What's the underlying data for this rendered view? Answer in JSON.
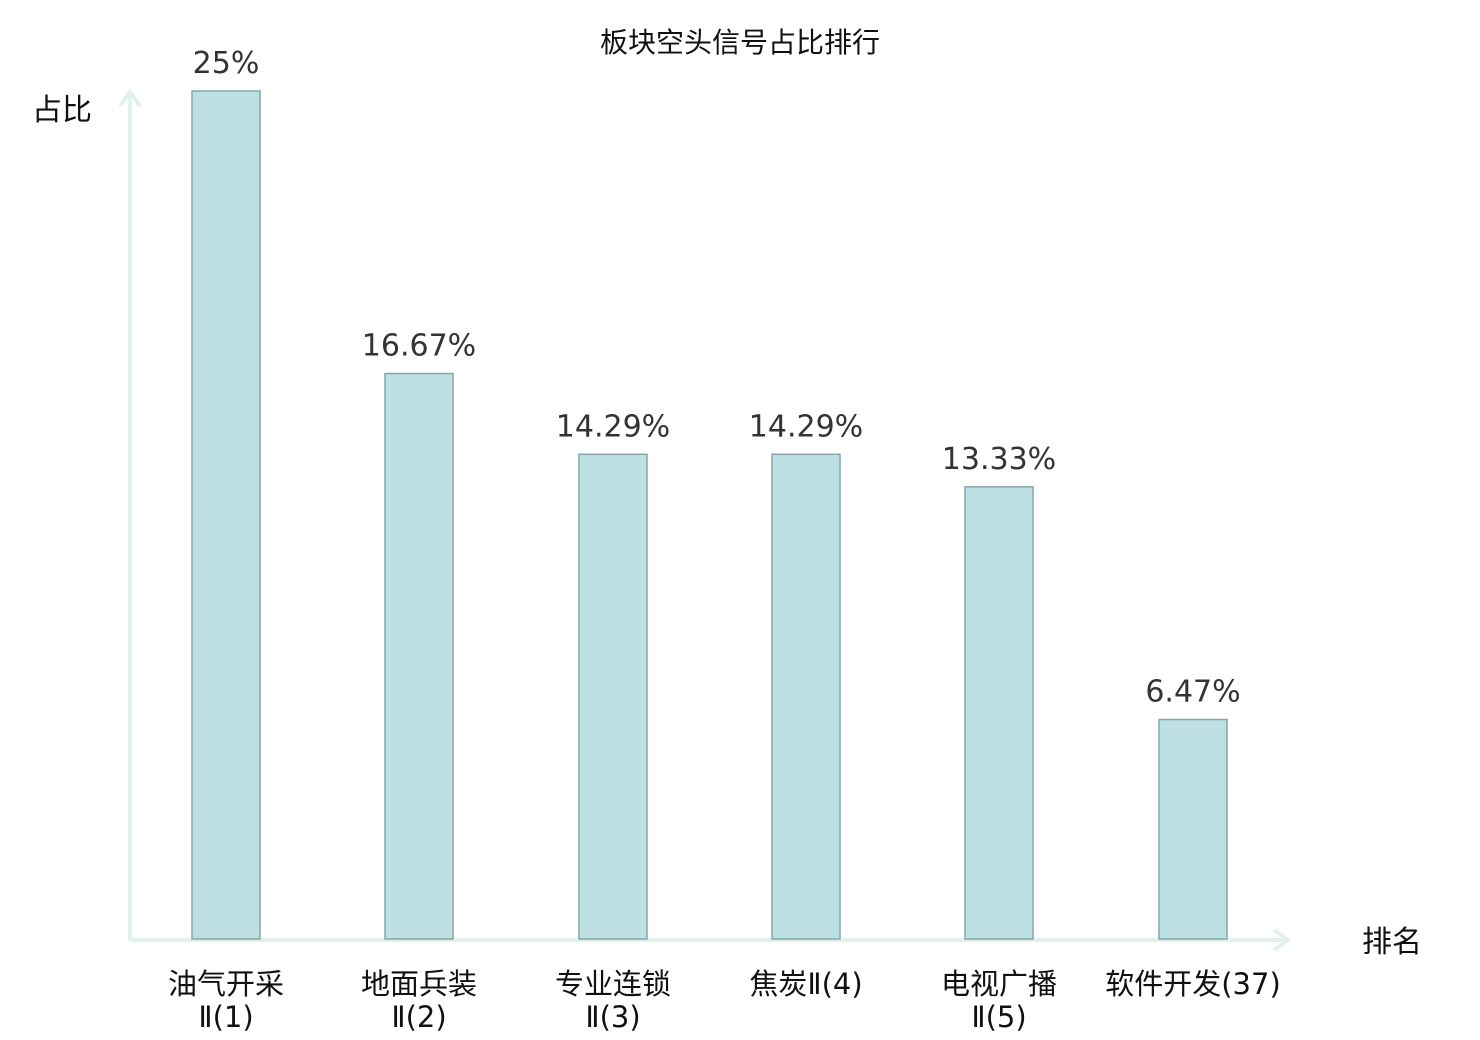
{
  "chart_data": {
    "type": "bar",
    "title": "板块空头信号占比排行",
    "ylabel": "占比",
    "xlabel": "排名",
    "ylim": [
      0,
      25
    ],
    "categories": [
      [
        "油气开采",
        "Ⅱ(1)"
      ],
      [
        "地面兵装",
        "Ⅱ(2)"
      ],
      [
        "专业连锁",
        "Ⅱ(3)"
      ],
      [
        "焦炭Ⅱ(4)"
      ],
      [
        "电视广播",
        "Ⅱ(5)"
      ],
      [
        "软件开发(37)"
      ]
    ],
    "values": [
      25,
      16.67,
      14.29,
      14.29,
      13.33,
      6.47
    ],
    "value_labels": [
      "25%",
      "16.67%",
      "14.29%",
      "14.29%",
      "13.33%",
      "6.47%"
    ],
    "highlight_index": 5,
    "grid": false,
    "legend": "none",
    "colors": {
      "bar_fill": "#bde0e3",
      "bar_stroke": "#86a6a9",
      "axis": "#e0f1ee",
      "highlight_text": "#e02020",
      "label_text": "#111111",
      "value_text": "#333333"
    }
  }
}
